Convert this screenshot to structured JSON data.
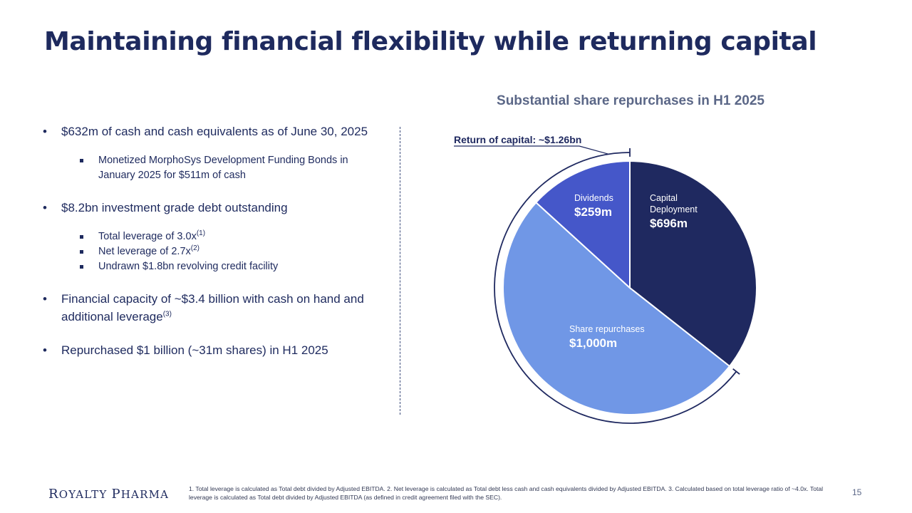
{
  "slide": {
    "title": "Maintaining financial flexibility while returning capital",
    "page_number": "15"
  },
  "bullets": {
    "cash": "$632m of cash and cash equivalents as of June 30, 2025",
    "cash_sub": "Monetized MorphoSys Development Funding Bonds in January 2025 for $511m of cash",
    "debt": "$8.2bn investment grade debt outstanding",
    "total_leverage": "Total leverage of 3.0x",
    "total_leverage_sup": "(1)",
    "net_leverage": "Net leverage of 2.7x",
    "net_leverage_sup": "(2)",
    "revolver": "Undrawn $1.8bn revolving credit facility",
    "capacity": "Financial capacity of ~$3.4 billion with cash on hand and additional leverage",
    "capacity_sup": "(3)",
    "repurchase": "Repurchased $1 billion (~31m shares) in H1 2025"
  },
  "chart_data": {
    "type": "pie",
    "title": "Substantial share repurchases in H1 2025",
    "annotation": "Return of capital: ~$1.26bn",
    "slices": [
      {
        "label": "Capital Deployment",
        "label_lines": [
          "Capital",
          "Deployment"
        ],
        "value_label": "$696m",
        "value": 696,
        "color": "#1f2960"
      },
      {
        "label": "Share repurchases",
        "label_lines": [
          "Share repurchases"
        ],
        "value_label": "$1,000m",
        "value": 1000,
        "color": "#7097e6"
      },
      {
        "label": "Dividends",
        "label_lines": [
          "Dividends"
        ],
        "value_label": "$259m",
        "value": 259,
        "color": "#4557c9"
      }
    ]
  },
  "footer": {
    "logo_parts": [
      "R",
      "OYALTY ",
      "P",
      "HARMA"
    ],
    "footnote": "1. Total leverage is calculated as Total debt divided by Adjusted EBITDA. 2. Net leverage is calculated as Total debt less cash and cash equivalents divided by Adjusted EBITDA. 3. Calculated based on total leverage ratio of ~4.0x. Total leverage is calculated as Total debt divided by Adjusted EBITDA (as defined in credit agreement filed with the SEC)."
  }
}
